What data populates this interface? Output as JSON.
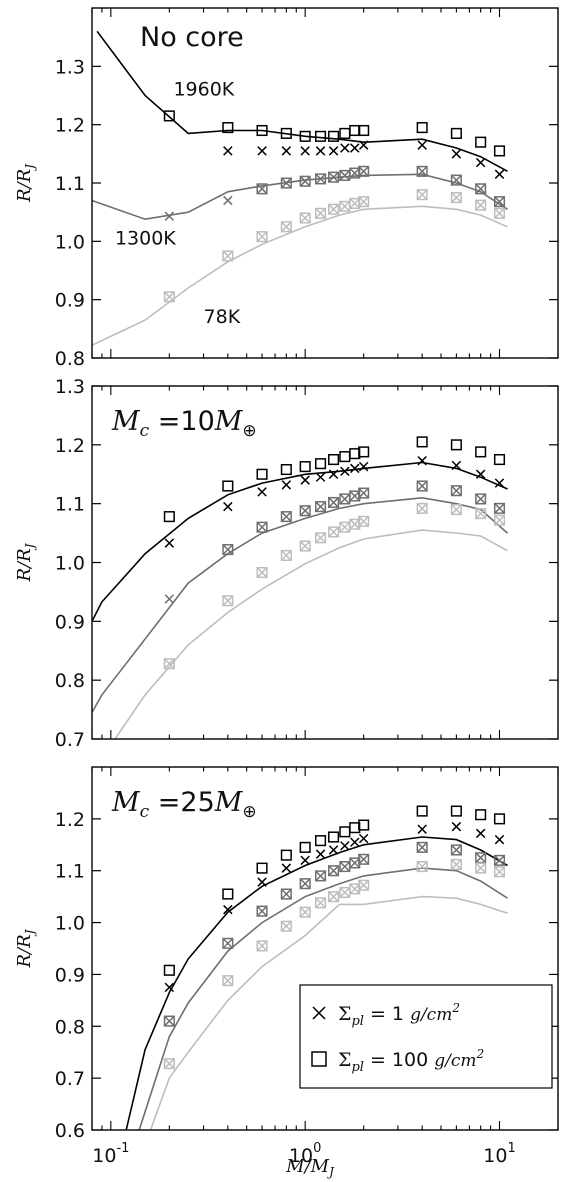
{
  "colors": {
    "1960K": "#000000",
    "1300K": "#6f6f6f",
    "78K": "#bdbdbd",
    "frame": "#000000"
  },
  "x_axis": {
    "label": "M/M_J",
    "scale": "log",
    "xlim": [
      0.08,
      20
    ],
    "major_ticks": [
      {
        "value": 0.1,
        "base": "10",
        "exp": "-1"
      },
      {
        "value": 1,
        "base": "10",
        "exp": "0"
      },
      {
        "value": 10,
        "base": "10",
        "exp": "1"
      }
    ]
  },
  "legend": {
    "placement": "lower-right",
    "entries": [
      {
        "marker": "x",
        "symbol": "×",
        "text": "Σ",
        "sub": "pl",
        "value": " = 1 ",
        "unit_base": "g/cm",
        "unit_exp": "2"
      },
      {
        "marker": "square",
        "symbol": "□",
        "text": "Σ",
        "sub": "pl",
        "value": " = 100 ",
        "unit_base": "g/cm",
        "unit_exp": "2"
      }
    ]
  },
  "chart_data": [
    {
      "type": "line",
      "title": "No core",
      "ylabel": "R/R_J",
      "ylim": [
        0.8,
        1.4
      ],
      "yticks": [
        0.8,
        0.9,
        1.0,
        1.1,
        1.2,
        1.3
      ],
      "ytick_labels": [
        "0.8",
        "0.9",
        "1.0",
        "1.1",
        "1.2",
        "1.3"
      ],
      "annotations": [
        {
          "text": "1960K",
          "x": 0.21,
          "y": 1.25
        },
        {
          "text": "1300K",
          "x": 0.105,
          "y": 0.995
        },
        {
          "text": "78K",
          "x": 0.3,
          "y": 0.86
        }
      ],
      "series": [
        {
          "key": "1960K",
          "line": {
            "x": [
              0.085,
              0.15,
              0.25,
              0.4,
              0.6,
              1.0,
              1.5,
              2.0,
              4.0,
              6.0,
              8.0,
              11.0
            ],
            "y": [
              1.36,
              1.25,
              1.185,
              1.19,
              1.19,
              1.18,
              1.175,
              1.17,
              1.175,
              1.16,
              1.145,
              1.12
            ]
          },
          "sigma1": {
            "x": [
              0.4,
              0.6,
              0.8,
              1.0,
              1.2,
              1.4,
              1.6,
              1.8,
              2.0,
              4.0,
              6.0,
              8.0,
              10.0
            ],
            "y": [
              1.155,
              1.155,
              1.155,
              1.155,
              1.155,
              1.155,
              1.16,
              1.16,
              1.165,
              1.165,
              1.15,
              1.135,
              1.115
            ]
          },
          "sigma100": {
            "x": [
              0.2,
              0.4,
              0.6,
              0.8,
              1.0,
              1.2,
              1.4,
              1.6,
              1.8,
              2.0,
              4.0,
              6.0,
              8.0,
              10.0
            ],
            "y": [
              1.215,
              1.195,
              1.19,
              1.185,
              1.18,
              1.18,
              1.18,
              1.185,
              1.19,
              1.19,
              1.195,
              1.185,
              1.17,
              1.155
            ]
          }
        },
        {
          "key": "1300K",
          "line": {
            "x": [
              0.08,
              0.15,
              0.25,
              0.4,
              0.6,
              1.0,
              1.5,
              2.0,
              4.0,
              6.0,
              8.0,
              11.0
            ],
            "y": [
              1.07,
              1.038,
              1.05,
              1.085,
              1.095,
              1.105,
              1.11,
              1.113,
              1.115,
              1.1,
              1.085,
              1.055
            ]
          },
          "sigma1": {
            "x": [
              0.2,
              0.4,
              0.6,
              0.8,
              1.0,
              1.2,
              1.4,
              1.6,
              1.8,
              2.0,
              4.0,
              6.0,
              8.0,
              10.0
            ],
            "y": [
              1.043,
              1.07,
              1.09,
              1.1,
              1.103,
              1.107,
              1.11,
              1.113,
              1.117,
              1.12,
              1.12,
              1.105,
              1.09,
              1.068
            ]
          },
          "sigma100": {
            "x": [
              0.6,
              0.8,
              1.0,
              1.2,
              1.4,
              1.6,
              1.8,
              2.0,
              4.0,
              6.0,
              8.0,
              10.0
            ],
            "y": [
              1.09,
              1.1,
              1.103,
              1.107,
              1.11,
              1.113,
              1.117,
              1.12,
              1.12,
              1.105,
              1.09,
              1.068
            ]
          }
        },
        {
          "key": "78K",
          "line": {
            "x": [
              0.08,
              0.15,
              0.25,
              0.4,
              0.6,
              1.0,
              1.5,
              2.0,
              4.0,
              6.0,
              8.0,
              11.0
            ],
            "y": [
              0.822,
              0.865,
              0.92,
              0.965,
              0.995,
              1.025,
              1.045,
              1.055,
              1.06,
              1.055,
              1.045,
              1.025
            ]
          },
          "sigma1": {
            "x": [
              0.2,
              0.4,
              0.6,
              0.8,
              1.0,
              1.2,
              1.4,
              1.6,
              1.8,
              2.0,
              4.0,
              6.0,
              8.0,
              10.0
            ],
            "y": [
              0.905,
              0.975,
              1.008,
              1.025,
              1.04,
              1.048,
              1.055,
              1.06,
              1.065,
              1.068,
              1.08,
              1.075,
              1.062,
              1.048
            ]
          },
          "sigma100": {
            "x": [
              0.2,
              0.4,
              0.6,
              0.8,
              1.0,
              1.2,
              1.4,
              1.6,
              1.8,
              2.0,
              4.0,
              6.0,
              8.0,
              10.0
            ],
            "y": [
              0.905,
              0.975,
              1.008,
              1.025,
              1.04,
              1.048,
              1.055,
              1.06,
              1.065,
              1.068,
              1.08,
              1.075,
              1.062,
              1.048
            ]
          }
        }
      ]
    },
    {
      "type": "line",
      "title": "M_c = 10 M_⊕",
      "ylabel": "R/R_J",
      "ylim": [
        0.7,
        1.3
      ],
      "yticks": [
        0.7,
        0.8,
        0.9,
        1.0,
        1.1,
        1.2,
        1.3
      ],
      "ytick_labels": [
        "0.7",
        "0.8",
        "0.9",
        "1.0",
        "1.1",
        "1.2",
        "1.3"
      ],
      "annotations": [],
      "series": [
        {
          "key": "1960K",
          "line": {
            "x": [
              0.08,
              0.09,
              0.15,
              0.25,
              0.4,
              0.6,
              1.0,
              1.5,
              2.0,
              4.0,
              6.0,
              8.0,
              11.0
            ],
            "y": [
              0.9,
              0.933,
              1.015,
              1.075,
              1.115,
              1.135,
              1.15,
              1.155,
              1.16,
              1.17,
              1.16,
              1.145,
              1.125
            ]
          },
          "sigma1": {
            "x": [
              0.2,
              0.4,
              0.6,
              0.8,
              1.0,
              1.2,
              1.4,
              1.6,
              1.8,
              2.0,
              4.0,
              6.0,
              8.0,
              10.0
            ],
            "y": [
              1.033,
              1.095,
              1.12,
              1.132,
              1.14,
              1.145,
              1.15,
              1.155,
              1.16,
              1.163,
              1.173,
              1.165,
              1.15,
              1.135
            ]
          },
          "sigma100": {
            "x": [
              0.2,
              0.4,
              0.6,
              0.8,
              1.0,
              1.2,
              1.4,
              1.6,
              1.8,
              2.0,
              4.0,
              6.0,
              8.0,
              10.0
            ],
            "y": [
              1.078,
              1.13,
              1.15,
              1.158,
              1.163,
              1.168,
              1.175,
              1.18,
              1.185,
              1.188,
              1.205,
              1.2,
              1.188,
              1.175
            ]
          }
        },
        {
          "key": "1300K",
          "line": {
            "x": [
              0.08,
              0.09,
              0.15,
              0.25,
              0.4,
              0.6,
              1.0,
              1.5,
              2.0,
              4.0,
              6.0,
              8.0,
              11.0
            ],
            "y": [
              0.745,
              0.775,
              0.87,
              0.965,
              1.015,
              1.05,
              1.075,
              1.092,
              1.1,
              1.11,
              1.1,
              1.09,
              1.05
            ]
          },
          "sigma1": {
            "x": [
              0.2,
              0.4,
              0.6,
              0.8,
              1.0,
              1.2,
              1.4,
              1.6,
              1.8,
              2.0,
              4.0,
              6.0,
              8.0,
              10.0
            ],
            "y": [
              0.938,
              1.022,
              1.06,
              1.078,
              1.088,
              1.095,
              1.102,
              1.108,
              1.113,
              1.118,
              1.13,
              1.122,
              1.108,
              1.092
            ]
          },
          "sigma100": {
            "x": [
              0.4,
              0.6,
              0.8,
              1.0,
              1.2,
              1.4,
              1.6,
              1.8,
              2.0,
              4.0,
              6.0,
              8.0,
              10.0
            ],
            "y": [
              1.022,
              1.06,
              1.078,
              1.088,
              1.095,
              1.102,
              1.108,
              1.113,
              1.118,
              1.13,
              1.122,
              1.108,
              1.092
            ]
          }
        },
        {
          "key": "78K",
          "line": {
            "x": [
              0.105,
              0.15,
              0.25,
              0.4,
              0.6,
              1.0,
              1.5,
              2.0,
              4.0,
              6.0,
              8.0,
              11.0
            ],
            "y": [
              0.7,
              0.775,
              0.86,
              0.915,
              0.955,
              0.998,
              1.025,
              1.04,
              1.055,
              1.05,
              1.045,
              1.02
            ]
          },
          "sigma1": {
            "x": [
              0.2,
              0.4,
              0.6,
              0.8,
              1.0,
              1.2,
              1.4,
              1.6,
              1.8,
              2.0,
              4.0,
              6.0,
              8.0,
              10.0
            ],
            "y": [
              0.828,
              0.935,
              0.983,
              1.012,
              1.028,
              1.042,
              1.052,
              1.06,
              1.065,
              1.07,
              1.092,
              1.09,
              1.083,
              1.072
            ]
          },
          "sigma100": {
            "x": [
              0.2,
              0.4,
              0.6,
              0.8,
              1.0,
              1.2,
              1.4,
              1.6,
              1.8,
              2.0,
              4.0,
              6.0,
              8.0,
              10.0
            ],
            "y": [
              0.828,
              0.935,
              0.983,
              1.012,
              1.028,
              1.042,
              1.052,
              1.06,
              1.065,
              1.07,
              1.092,
              1.09,
              1.083,
              1.072
            ]
          }
        }
      ]
    },
    {
      "type": "line",
      "title": "M_c = 25 M_⊕",
      "ylabel": "R/R_J",
      "xlabel": "M/M_J",
      "ylim": [
        0.6,
        1.3
      ],
      "yticks": [
        0.6,
        0.7,
        0.8,
        0.9,
        1.0,
        1.1,
        1.2
      ],
      "ytick_labels": [
        "0.6",
        "0.7",
        "0.8",
        "0.9",
        "1.0",
        "1.1",
        "1.2"
      ],
      "annotations": [],
      "series": [
        {
          "key": "1960K",
          "line": {
            "x": [
              0.12,
              0.15,
              0.2,
              0.25,
              0.4,
              0.6,
              1.0,
              1.5,
              2.0,
              4.0,
              6.0,
              8.0,
              11.0
            ],
            "y": [
              0.6,
              0.755,
              0.865,
              0.93,
              1.02,
              1.07,
              1.11,
              1.135,
              1.15,
              1.165,
              1.16,
              1.14,
              1.11
            ]
          },
          "sigma1": {
            "x": [
              0.2,
              0.4,
              0.6,
              0.8,
              1.0,
              1.2,
              1.4,
              1.6,
              1.8,
              2.0,
              4.0,
              6.0,
              8.0,
              10.0
            ],
            "y": [
              0.875,
              1.025,
              1.078,
              1.105,
              1.12,
              1.132,
              1.14,
              1.148,
              1.155,
              1.162,
              1.18,
              1.185,
              1.172,
              1.16
            ]
          },
          "sigma100": {
            "x": [
              0.2,
              0.4,
              0.6,
              0.8,
              1.0,
              1.2,
              1.4,
              1.6,
              1.8,
              2.0,
              4.0,
              6.0,
              8.0,
              10.0
            ],
            "y": [
              0.908,
              1.055,
              1.105,
              1.13,
              1.145,
              1.158,
              1.165,
              1.175,
              1.183,
              1.188,
              1.215,
              1.215,
              1.208,
              1.2
            ]
          }
        },
        {
          "key": "1300K",
          "line": {
            "x": [
              0.14,
              0.2,
              0.25,
              0.4,
              0.6,
              1.0,
              1.5,
              2.0,
              4.0,
              6.0,
              8.0,
              11.0
            ],
            "y": [
              0.6,
              0.78,
              0.845,
              0.945,
              1.0,
              1.05,
              1.075,
              1.09,
              1.105,
              1.1,
              1.08,
              1.047
            ]
          },
          "sigma1": {
            "x": [
              0.2,
              0.4,
              0.6,
              0.8,
              1.0,
              1.2,
              1.4,
              1.6,
              1.8,
              2.0,
              4.0,
              6.0,
              8.0,
              10.0
            ],
            "y": [
              0.81,
              0.96,
              1.022,
              1.055,
              1.075,
              1.09,
              1.1,
              1.108,
              1.115,
              1.122,
              1.145,
              1.14,
              1.125,
              1.12
            ]
          },
          "sigma100": {
            "x": [
              0.2,
              0.4,
              0.6,
              0.8,
              1.0,
              1.2,
              1.4,
              1.6,
              1.8,
              2.0,
              4.0,
              6.0,
              8.0,
              10.0
            ],
            "y": [
              0.81,
              0.96,
              1.022,
              1.055,
              1.075,
              1.09,
              1.1,
              1.108,
              1.115,
              1.122,
              1.145,
              1.14,
              1.125,
              1.12
            ]
          }
        },
        {
          "key": "78K",
          "line": {
            "x": [
              0.16,
              0.2,
              0.25,
              0.4,
              0.6,
              1.0,
              1.5,
              2.0,
              4.0,
              6.0,
              8.0,
              11.0
            ],
            "y": [
              0.6,
              0.7,
              0.75,
              0.85,
              0.915,
              0.975,
              1.035,
              1.035,
              1.05,
              1.047,
              1.035,
              1.018
            ]
          },
          "sigma1": {
            "x": [
              0.2,
              0.4,
              0.6,
              0.8,
              1.0,
              1.2,
              1.4,
              1.6,
              1.8,
              2.0,
              4.0,
              6.0,
              8.0,
              10.0
            ],
            "y": [
              0.728,
              0.888,
              0.955,
              0.993,
              1.02,
              1.038,
              1.05,
              1.058,
              1.065,
              1.072,
              1.108,
              1.112,
              1.105,
              1.098
            ]
          },
          "sigma100": {
            "x": [
              0.2,
              0.4,
              0.6,
              0.8,
              1.0,
              1.2,
              1.4,
              1.6,
              1.8,
              2.0,
              4.0,
              6.0,
              8.0,
              10.0
            ],
            "y": [
              0.728,
              0.888,
              0.955,
              0.993,
              1.02,
              1.038,
              1.05,
              1.058,
              1.065,
              1.072,
              1.108,
              1.112,
              1.105,
              1.098
            ]
          }
        }
      ]
    }
  ]
}
